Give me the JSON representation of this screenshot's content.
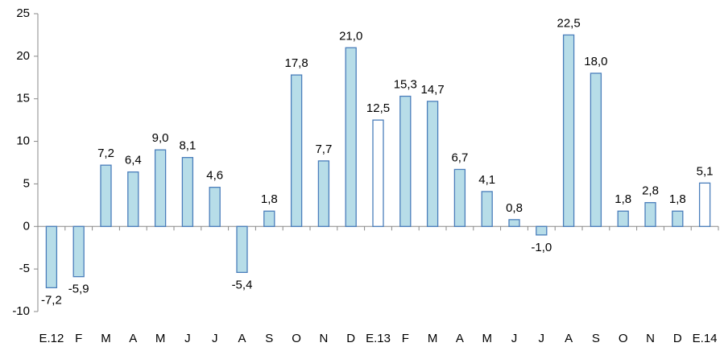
{
  "chart_data": {
    "type": "bar",
    "categories": [
      "E.12",
      "F",
      "M",
      "A",
      "M",
      "J",
      "J",
      "A",
      "S",
      "O",
      "N",
      "D",
      "E.13",
      "F",
      "M",
      "A",
      "M",
      "J",
      "J",
      "A",
      "S",
      "O",
      "N",
      "D",
      "E.14"
    ],
    "values": [
      -7.2,
      -5.9,
      7.2,
      6.4,
      9.0,
      8.1,
      4.6,
      -5.4,
      1.8,
      17.8,
      7.7,
      21.0,
      12.5,
      15.3,
      14.7,
      6.7,
      4.1,
      0.8,
      -1.0,
      22.5,
      18.0,
      1.8,
      2.8,
      1.8,
      5.1
    ],
    "value_labels": [
      "-7,2",
      "-5,9",
      "7,2",
      "6,4",
      "9,0",
      "8,1",
      "4,6",
      "-5,4",
      "1,8",
      "17,8",
      "7,7",
      "21,0",
      "12,5",
      "15,3",
      "14,7",
      "6,7",
      "4,1",
      "0,8",
      "-1,0",
      "22,5",
      "18,0",
      "1,8",
      "2,8",
      "1,8",
      "5,1"
    ],
    "colors": [
      "#b7dde8",
      "#b7dde8",
      "#b7dde8",
      "#b7dde8",
      "#b7dde8",
      "#b7dde8",
      "#b7dde8",
      "#b7dde8",
      "#b7dde8",
      "#b7dde8",
      "#b7dde8",
      "#b7dde8",
      "#ffffff",
      "#b7dde8",
      "#b7dde8",
      "#b7dde8",
      "#b7dde8",
      "#b7dde8",
      "#b7dde8",
      "#b7dde8",
      "#b7dde8",
      "#b7dde8",
      "#b7dde8",
      "#b7dde8",
      "#ffffff"
    ],
    "edge_color": "#4a7ebb",
    "ylim": [
      -10,
      25
    ],
    "yticks": [
      -10,
      -5,
      0,
      5,
      10,
      15,
      20,
      25
    ],
    "grid": false
  }
}
